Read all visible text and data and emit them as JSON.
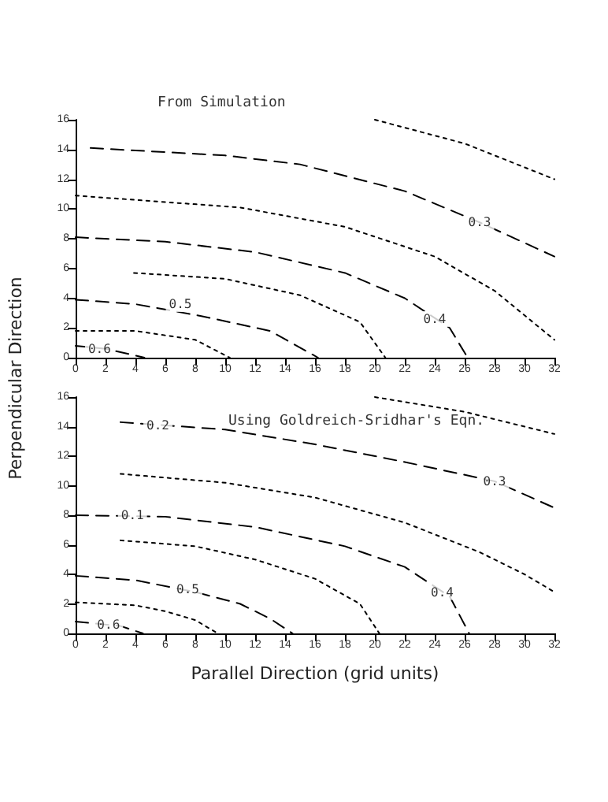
{
  "chart_data": [
    {
      "type": "line",
      "title": "From Simulation",
      "ylabel": "Perpendicular Direction",
      "xlim": [
        0,
        32
      ],
      "xticks": [
        0,
        2,
        4,
        6,
        8,
        10,
        12,
        14,
        16,
        18,
        20,
        22,
        24,
        26,
        28,
        30,
        32
      ],
      "ylim": [
        0,
        16
      ],
      "yticks": [
        0,
        2,
        4,
        6,
        8,
        10,
        12,
        14,
        16
      ],
      "marker": "none",
      "series": [
        {
          "color": "#000000",
          "line_style": "dashed",
          "x": [
            0,
            2,
            4.6
          ],
          "values": [
            0.8,
            0.6,
            0
          ]
        },
        {
          "color": "#000000",
          "line_style": "dotted",
          "x": [
            0,
            4,
            8,
            10.3
          ],
          "values": [
            1.8,
            1.8,
            1.2,
            0
          ]
        },
        {
          "color": "#000000",
          "line_style": "dashed",
          "x": [
            0,
            4,
            8.4,
            13,
            16.2
          ],
          "values": [
            3.9,
            3.6,
            2.8,
            1.8,
            0
          ]
        },
        {
          "color": "#000000",
          "line_style": "dotted",
          "x": [
            3.9,
            10,
            15,
            19,
            20.7
          ],
          "values": [
            5.7,
            5.3,
            4.2,
            2.4,
            0
          ]
        },
        {
          "color": "#000000",
          "line_style": "dashed",
          "x": [
            0,
            6,
            12,
            18,
            22,
            25,
            26.2
          ],
          "values": [
            8.1,
            7.8,
            7.1,
            5.7,
            4,
            2,
            0
          ]
        },
        {
          "color": "#000000",
          "line_style": "dotted",
          "x": [
            0,
            11,
            18,
            24,
            28,
            32
          ],
          "values": [
            10.9,
            10.1,
            8.8,
            6.8,
            4.5,
            1.2
          ]
        },
        {
          "color": "#000000",
          "line_style": "dashed",
          "x": [
            1,
            4.6,
            10,
            15,
            22,
            27,
            32
          ],
          "values": [
            14.1,
            13.9,
            13.6,
            13,
            11.2,
            9.1,
            6.8
          ]
        },
        {
          "color": "#000000",
          "line_style": "dotted",
          "x": [
            20,
            26,
            32
          ],
          "values": [
            16,
            14.4,
            12
          ]
        }
      ],
      "annotations": [
        {
          "text": "0.6",
          "x": 1.6,
          "y": 0.6
        },
        {
          "text": "0.5",
          "x": 7,
          "y": 3.6
        },
        {
          "text": "0.4",
          "x": 24,
          "y": 2.6
        },
        {
          "text": "0.3",
          "x": 27,
          "y": 9.1
        }
      ]
    },
    {
      "type": "line",
      "title": "Using Goldreich-Sridhar's Eqn.",
      "xlabel": "Parallel Direction (grid units)",
      "xlim": [
        0,
        32
      ],
      "xticks": [
        0,
        2,
        4,
        6,
        8,
        10,
        12,
        14,
        16,
        18,
        20,
        22,
        24,
        26,
        28,
        30,
        32
      ],
      "ylim": [
        0,
        16
      ],
      "yticks": [
        0,
        2,
        4,
        6,
        8,
        10,
        12,
        14,
        16
      ],
      "marker": "none",
      "series": [
        {
          "color": "#000000",
          "line_style": "dashed",
          "x": [
            0,
            3,
            4.5
          ],
          "values": [
            0.8,
            0.5,
            0
          ]
        },
        {
          "color": "#000000",
          "line_style": "dotted",
          "x": [
            0,
            4,
            6,
            8,
            9.5
          ],
          "values": [
            2.1,
            1.9,
            1.5,
            0.9,
            0
          ]
        },
        {
          "color": "#000000",
          "line_style": "dashed",
          "x": [
            0,
            4,
            8,
            11,
            13,
            14.5
          ],
          "values": [
            3.9,
            3.6,
            2.8,
            2,
            1,
            0
          ]
        },
        {
          "color": "#000000",
          "line_style": "dotted",
          "x": [
            3,
            8,
            12,
            16,
            19,
            20.3
          ],
          "values": [
            6.3,
            5.9,
            5,
            3.7,
            2,
            0
          ]
        },
        {
          "color": "#000000",
          "line_style": "dashed",
          "x": [
            0,
            6,
            12,
            18,
            22,
            25,
            26.3
          ],
          "values": [
            8,
            7.9,
            7.2,
            5.9,
            4.5,
            2.5,
            0
          ]
        },
        {
          "color": "#000000",
          "line_style": "dotted",
          "x": [
            3,
            10,
            16,
            22,
            27,
            30,
            32
          ],
          "values": [
            10.8,
            10.2,
            9.2,
            7.5,
            5.5,
            4,
            2.8
          ]
        },
        {
          "color": "#000000",
          "line_style": "dashed",
          "x": [
            3,
            10,
            16,
            22,
            28,
            32
          ],
          "values": [
            14.3,
            13.8,
            12.8,
            11.6,
            10.3,
            8.5
          ]
        },
        {
          "color": "#000000",
          "line_style": "dotted",
          "x": [
            20,
            26,
            32
          ],
          "values": [
            16,
            15,
            13.5
          ]
        }
      ],
      "annotations": [
        {
          "text": "0.6",
          "x": 2.2,
          "y": 0.6
        },
        {
          "text": "0.5",
          "x": 7.5,
          "y": 3
        },
        {
          "text": "0.1",
          "x": 3.8,
          "y": 8
        },
        {
          "text": "0.4",
          "x": 24.5,
          "y": 2.8
        },
        {
          "text": "0.3",
          "x": 28,
          "y": 10.3
        },
        {
          "text": "0.2",
          "x": 5.5,
          "y": 14.1
        }
      ]
    }
  ]
}
